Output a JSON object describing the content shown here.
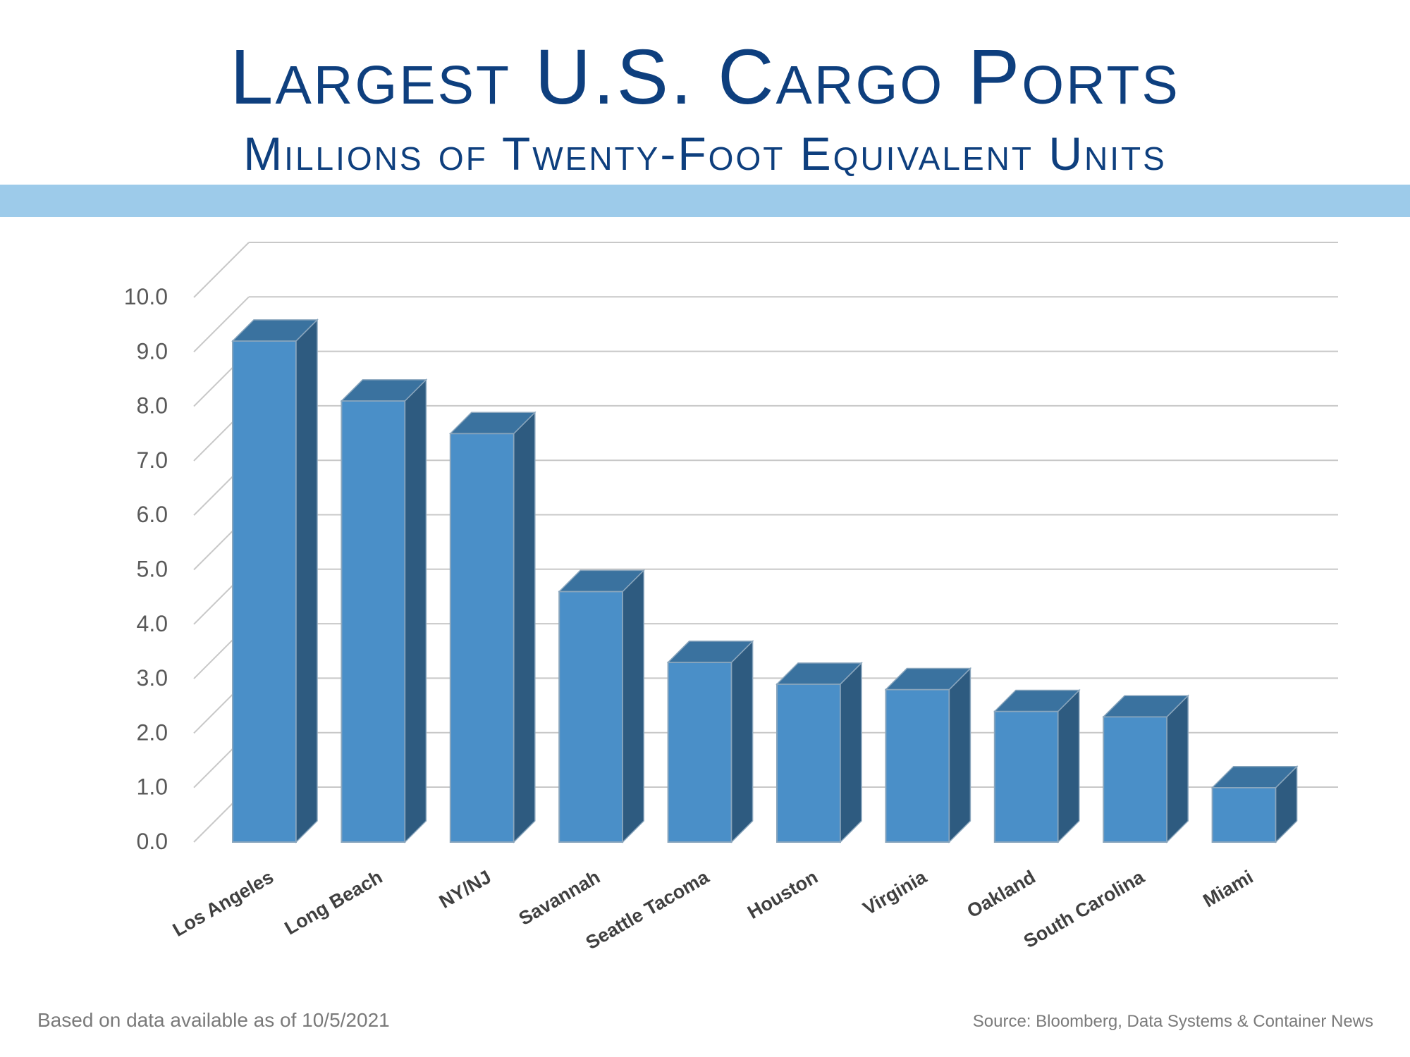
{
  "title": "Largest U.S. Cargo Ports",
  "subtitle": "Millions of Twenty-Foot Equivalent Units",
  "footer": {
    "note": "Based on data available as of 10/5/2021",
    "source": "Source:  Bloomberg, Data Systems & Container News"
  },
  "colors": {
    "title": "#0e3f7e",
    "band": "#9dcbea",
    "bar_front": "#4a8fc8",
    "bar_side": "#2e5b80",
    "bar_top": "#3a729f",
    "grid": "#c8c8c8"
  },
  "chart_data": {
    "type": "bar",
    "categories": [
      "Los Angeles",
      "Long Beach",
      "NY/NJ",
      "Savannah",
      "Seattle Tacoma",
      "Houston",
      "Virginia",
      "Oakland",
      "South Carolina",
      "Miami"
    ],
    "values": [
      9.2,
      8.1,
      7.5,
      4.6,
      3.3,
      2.9,
      2.8,
      2.4,
      2.3,
      1.0
    ],
    "yticks": [
      "0.0",
      "1.0",
      "2.0",
      "3.0",
      "4.0",
      "5.0",
      "6.0",
      "7.0",
      "8.0",
      "9.0",
      "10.0"
    ],
    "ylim": [
      0,
      10
    ],
    "grid": true,
    "style": "3d-column"
  }
}
